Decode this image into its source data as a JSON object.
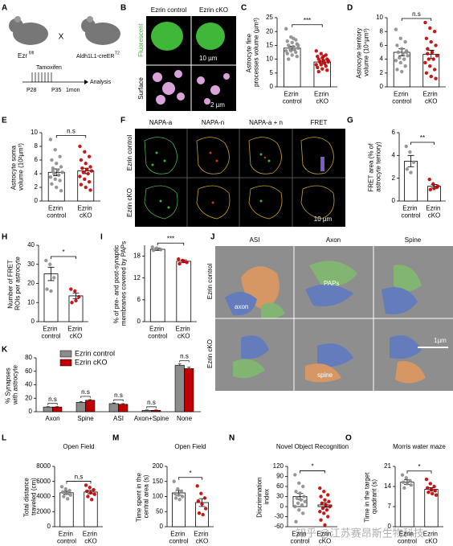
{
  "chart_data": [
    {
      "type": "bar",
      "y_label": "Astrocyte fine processes volume (µm³)",
      "categories": [
        "Ezrin control",
        "Ezrin cKO"
      ],
      "values": [
        14,
        9
      ],
      "errors": [
        0.7,
        0.6
      ],
      "points": [
        [
          21,
          18,
          17,
          16.5,
          16,
          15.5,
          15,
          14.5,
          14,
          14,
          13.5,
          13,
          13,
          12.5,
          12,
          11.5,
          11,
          10,
          17.5,
          15
        ],
        [
          13,
          12,
          11.5,
          11,
          10.5,
          10,
          10,
          9.5,
          9,
          9,
          8.5,
          8,
          8,
          7.5,
          7,
          6.5,
          6,
          5.5,
          11,
          9.5
        ]
      ],
      "bar_fill": "#ffffff",
      "point_colors": [
        "#8c8c8c",
        "#c00000"
      ],
      "ylim": [
        0,
        25
      ],
      "yticks": [
        0,
        5,
        10,
        15,
        20,
        25
      ],
      "significance": "***"
    },
    {
      "type": "bar",
      "y_label": "Astrocyte territory volume (10⁴µm³)",
      "categories": [
        "Ezrin control",
        "Ezrin cKO"
      ],
      "values": [
        5,
        4.7
      ],
      "errors": [
        0.5,
        0.6
      ],
      "points": [
        [
          8.3,
          7,
          6.5,
          6,
          5.5,
          5,
          5,
          4.8,
          4.5,
          4.2,
          4,
          3.8,
          3.5,
          3,
          2.5,
          2.2,
          5.2
        ],
        [
          9.3,
          8.5,
          8,
          7,
          6.5,
          6,
          5.5,
          5,
          4.5,
          4,
          4,
          3.5,
          3,
          2.5,
          2,
          1.5,
          1.2,
          4.8
        ]
      ],
      "bar_fill": "#ffffff",
      "point_colors": [
        "#8c8c8c",
        "#c00000"
      ],
      "ylim": [
        0,
        10
      ],
      "yticks": [
        0,
        2,
        4,
        6,
        8,
        10
      ],
      "significance": "n.s"
    },
    {
      "type": "bar",
      "y_label": "Astrocyte soma volume (10²µm³)",
      "categories": [
        "Ezrin control",
        "Ezrin cKO"
      ],
      "values": [
        4.2,
        4.4
      ],
      "errors": [
        0.5,
        0.4
      ],
      "points": [
        [
          9,
          7.5,
          6.5,
          6,
          5.5,
          5,
          4.8,
          4.5,
          4.2,
          4,
          3.8,
          3.5,
          3.2,
          3,
          2.5,
          2,
          1.5,
          4.4
        ],
        [
          8,
          7.2,
          6.5,
          6,
          5.5,
          5,
          4.8,
          4.6,
          4.4,
          4.2,
          4,
          3.6,
          3.2,
          2.8,
          2.4,
          2,
          1.6
        ]
      ],
      "bar_fill": "#ffffff",
      "point_colors": [
        "#8c8c8c",
        "#c00000"
      ],
      "ylim": [
        0,
        10
      ],
      "yticks": [
        0,
        2,
        4,
        6,
        8,
        10
      ],
      "significance": "n.s"
    },
    {
      "type": "bar",
      "y_label": "FRET area (% of astrocyte terriory)",
      "categories": [
        "Ezrin control",
        "Ezrin cKO"
      ],
      "values": [
        3.5,
        1.3
      ],
      "errors": [
        0.5,
        0.15
      ],
      "points": [
        [
          4.8,
          4.3,
          3.4,
          2.8,
          2.5
        ],
        [
          1.9,
          1.5,
          1.2,
          1.0,
          1.1,
          1.3
        ]
      ],
      "bar_fill": "#ffffff",
      "point_colors": [
        "#8c8c8c",
        "#c00000"
      ],
      "ylim": [
        0,
        6
      ],
      "yticks": [
        0,
        2,
        4,
        6
      ],
      "significance": "**"
    },
    {
      "type": "bar",
      "y_label": "Number of FRET ROIs per astrocyte",
      "categories": [
        "Ezrin control",
        "Ezrin cKO"
      ],
      "values": [
        25,
        13.5
      ],
      "errors": [
        3.5,
        1.5
      ],
      "points": [
        [
          32,
          30,
          23,
          17,
          16
        ],
        [
          17,
          16,
          13,
          10,
          11
        ]
      ],
      "bar_fill": "#ffffff",
      "point_colors": [
        "#8c8c8c",
        "#c00000"
      ],
      "ylim": [
        0,
        40
      ],
      "yticks": [
        0,
        10,
        20,
        30,
        40
      ],
      "significance": "*"
    },
    {
      "type": "bar",
      "y_label": "% of pre- and post-synaptic membranes covered by PAPs",
      "categories": [
        "Ezrin control",
        "Ezrin cKO"
      ],
      "values": [
        19.9,
        16.6
      ],
      "errors": [
        0.3,
        0.4
      ],
      "points": [
        [
          20.5,
          20.2,
          19.8,
          19.6
        ],
        [
          17.2,
          16.8,
          16.3,
          15.9,
          16.6
        ]
      ],
      "bar_fill": "#ffffff",
      "point_colors": [
        "#8c8c8c",
        "#c00000"
      ],
      "ylim": [
        0,
        21
      ],
      "yticks": [
        0,
        6,
        12,
        18
      ],
      "significance": "***"
    },
    {
      "type": "grouped_bar",
      "y_label": "% Synapses with astrocyte",
      "categories": [
        "Axon",
        "Spine",
        "ASI",
        "Axon+Spine",
        "None"
      ],
      "series": [
        {
          "name": "Ezrin control",
          "color": "#8c8c8c",
          "values": [
            7,
            14,
            12,
            2,
            69
          ],
          "errors": [
            0.5,
            1,
            1,
            0.5,
            2
          ]
        },
        {
          "name": "Ezrin cKO",
          "color": "#c00000",
          "values": [
            7,
            17,
            11,
            2,
            64
          ],
          "errors": [
            0.5,
            1,
            1,
            0.5,
            2
          ]
        }
      ],
      "ylim": [
        0,
        80
      ],
      "yticks": [
        0,
        20,
        40,
        60,
        80
      ],
      "significance": [
        "n.s",
        "n.s",
        "n.s",
        "n.s",
        "n.s"
      ],
      "legend": "upper left"
    },
    {
      "type": "bar",
      "title": "Open Field",
      "y_label": "Total distance traveled (cm)",
      "categories": [
        "Ezrin control",
        "Ezrin cKO"
      ],
      "values": [
        4500,
        4600
      ],
      "errors": [
        200,
        220
      ],
      "points": [
        [
          5300,
          5000,
          4800,
          4600,
          4400,
          4200,
          4000,
          3700
        ],
        [
          5500,
          5200,
          4900,
          4700,
          4500,
          4300,
          4000,
          3600
        ]
      ],
      "bar_fill": "#ffffff",
      "point_colors": [
        "#8c8c8c",
        "#c00000"
      ],
      "ylim": [
        0,
        8000
      ],
      "yticks": [
        0,
        2000,
        4000,
        6000,
        8000
      ],
      "significance": "n,s"
    },
    {
      "type": "bar",
      "title": "Open Field",
      "y_label": "Time spent in the central area (s)",
      "categories": [
        "Ezrin control",
        "Ezrin cKO"
      ],
      "values": [
        112,
        80
      ],
      "errors": [
        8,
        13
      ],
      "points": [
        [
          150,
          125,
          118,
          110,
          105,
          100,
          95,
          90
        ],
        [
          135,
          110,
          95,
          85,
          75,
          60,
          45,
          40
        ]
      ],
      "bar_fill": "#ffffff",
      "point_colors": [
        "#8c8c8c",
        "#c00000"
      ],
      "ylim": [
        0,
        200
      ],
      "yticks": [
        0,
        50,
        100,
        150,
        200
      ],
      "significance": "*"
    },
    {
      "type": "bar",
      "title": "Novel Object Recognition",
      "y_label": "Discrimination index",
      "categories": [
        "Ezrin control",
        "Ezrin cKO"
      ],
      "values": [
        30,
        5
      ],
      "errors": [
        9,
        7
      ],
      "points": [
        [
          95,
          70,
          60,
          45,
          40,
          30,
          25,
          20,
          15,
          10,
          5,
          0,
          -10,
          -20,
          -45
        ],
        [
          55,
          45,
          35,
          30,
          20,
          15,
          10,
          5,
          0,
          -5,
          -10,
          -15,
          -20,
          -30,
          -40,
          -55
        ]
      ],
      "bar_fill": "#ffffff",
      "point_colors": [
        "#8c8c8c",
        "#c00000"
      ],
      "ylim": [
        -60,
        120
      ],
      "yticks": [
        -60,
        -30,
        0,
        30,
        60,
        90,
        120
      ],
      "significance": "*"
    },
    {
      "type": "bar",
      "title": "Morris water maze",
      "y_label": "Time in the target quadrant (s)",
      "categories": [
        "Ezrin control",
        "Ezrin cKO"
      ],
      "values": [
        15.5,
        13
      ],
      "errors": [
        0.8,
        0.6
      ],
      "points": [
        [
          18,
          17,
          16,
          15.5,
          15,
          14.5,
          13.5
        ],
        [
          16.5,
          15,
          14,
          13.5,
          13,
          12.5,
          12,
          11.5,
          11
        ]
      ],
      "bar_fill": "#ffffff",
      "point_colors": [
        "#8c8c8c",
        "#c00000"
      ],
      "ylim": [
        0,
        21
      ],
      "yticks": [
        0,
        7,
        14,
        21
      ],
      "significance": "*"
    }
  ],
  "figure": {
    "panel_letters": [
      "A",
      "B",
      "C",
      "D",
      "E",
      "F",
      "G",
      "H",
      "I",
      "J",
      "K",
      "L",
      "M",
      "N",
      "O"
    ],
    "a": {
      "ezr": "Ezr",
      "ezr_sup": "fl/fl",
      "cross": "X",
      "cre": "Aldh1L1-creER",
      "cre_sup": "T2",
      "tamoxifen": "Tamoxifen",
      "p28": "P28",
      "p35": "P35",
      "one_mon": "1mon",
      "analysis": "Analysis"
    },
    "b": {
      "columns": [
        "Ezrin control",
        "Ezrin cKO"
      ],
      "rows": [
        "Fluorescent",
        "Surface"
      ],
      "scale_1": "10 µm",
      "scale_2": "2 µm"
    },
    "f": {
      "columns": [
        "NAPA-a",
        "NAPA-n",
        "NAPA-a + n",
        "FRET"
      ],
      "rows": [
        "Ezrin control",
        "Ezrin cKO"
      ],
      "scale": "10 µm"
    },
    "j": {
      "columns": [
        "ASI",
        "Axon",
        "Spine"
      ],
      "rows": [
        "Ezrin control",
        "Ezrin cKO"
      ],
      "labels": [
        "axon",
        "PAPs",
        "spine"
      ],
      "scale": "1µm"
    },
    "watermark": "知乎 @江苏赛昂斯生物科技"
  }
}
